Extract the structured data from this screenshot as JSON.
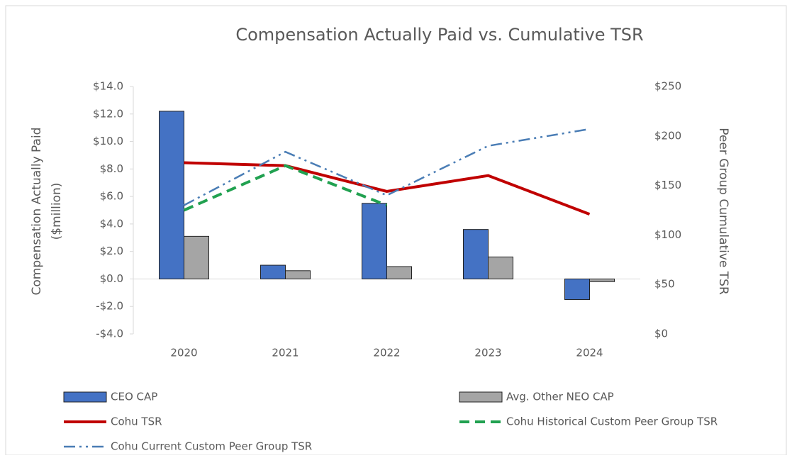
{
  "chart_data": {
    "type": "bar_line",
    "title": "Compensation Actually Paid vs. Cumulative TSR",
    "ylabel": [
      "Compensation Actually Paid",
      "($million)"
    ],
    "y2label": "Peer Group Cumulative TSR",
    "categories": [
      "2020",
      "2021",
      "2022",
      "2023",
      "2024"
    ],
    "ylim": [
      -4,
      14
    ],
    "yticks": [
      {
        "value": -4,
        "label": "-$4.0"
      },
      {
        "value": -2,
        "label": "-$2.0"
      },
      {
        "value": 0,
        "label": "$0.0"
      },
      {
        "value": 2,
        "label": "$2.0"
      },
      {
        "value": 4,
        "label": "$4.0"
      },
      {
        "value": 6,
        "label": "$6.0"
      },
      {
        "value": 8,
        "label": "$8.0"
      },
      {
        "value": 10,
        "label": "$10.0"
      },
      {
        "value": 12,
        "label": "$12.0"
      },
      {
        "value": 14,
        "label": "$14.0"
      }
    ],
    "y2lim": [
      0,
      250
    ],
    "y2ticks": [
      {
        "value": 0,
        "label": "$0"
      },
      {
        "value": 50,
        "label": "$50"
      },
      {
        "value": 100,
        "label": "$100"
      },
      {
        "value": 150,
        "label": "$150"
      },
      {
        "value": 200,
        "label": "$200"
      },
      {
        "value": 250,
        "label": "$250"
      }
    ],
    "series": [
      {
        "name": "CEO CAP",
        "kind": "bar",
        "color": "#4472c4",
        "values": [
          12.2,
          1.0,
          5.5,
          3.6,
          -1.5
        ]
      },
      {
        "name": "Avg. Other NEO CAP",
        "kind": "bar",
        "color": "#a5a5a5",
        "values": [
          3.1,
          0.6,
          0.9,
          1.6,
          -0.2
        ]
      },
      {
        "name": "Cohu TSR",
        "kind": "line",
        "axis": "y2",
        "color": "#c00000",
        "dash": "solid",
        "values": [
          173,
          170,
          144,
          160,
          121
        ]
      },
      {
        "name": "Cohu Historical Custom Peer Group TSR",
        "kind": "line",
        "axis": "y2",
        "color": "#21a150",
        "dash": "dashed",
        "values": [
          125,
          170,
          130,
          null,
          null
        ]
      },
      {
        "name": "Cohu Current Custom Peer Group TSR",
        "kind": "line",
        "axis": "y2",
        "color": "#4a7db5",
        "dash": "dashdotdot",
        "values": [
          130,
          184,
          140,
          190,
          207
        ]
      }
    ]
  }
}
